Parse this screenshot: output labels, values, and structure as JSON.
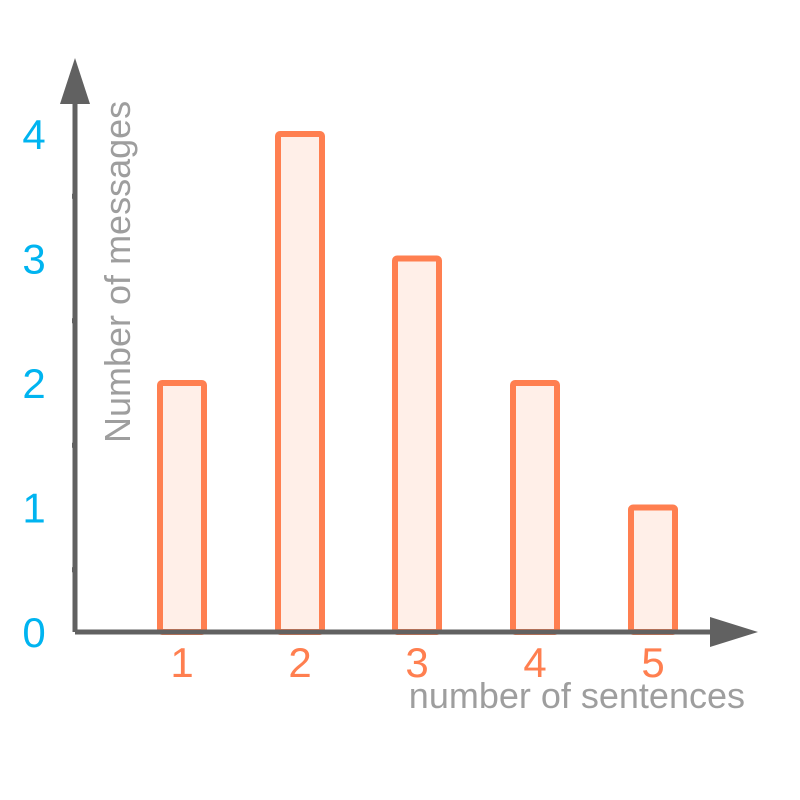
{
  "chart_data": {
    "type": "bar",
    "categories": [
      "1",
      "2",
      "3",
      "4",
      "5"
    ],
    "values": [
      2,
      4,
      3,
      2,
      1
    ],
    "xlabel": "number of sentences",
    "ylabel": "Number of messages",
    "yticks": [
      "0",
      "1",
      "2",
      "3",
      "4"
    ],
    "ylim": [
      0,
      4
    ],
    "grid": false,
    "colors": {
      "bar_stroke": "#FF7F50",
      "bar_fill": "#FFEFE8",
      "axis": "#616161",
      "y_tick_label": "#00B4F0",
      "x_tick_label": "#FF7F50",
      "axis_title": "#9E9E9E"
    }
  }
}
